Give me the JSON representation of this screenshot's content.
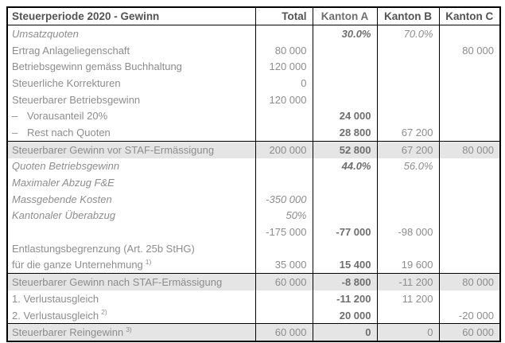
{
  "colors": {
    "border": "#000000",
    "text": "#8d8d8d",
    "bold_text": "#6e6e6e",
    "header_text": "#535353",
    "highlight_bg": "#e5e5e5"
  },
  "table": {
    "title": "Steuerperiode 2020 - Gewinn",
    "columns": [
      "Total",
      "Kanton A",
      "Kanton B",
      "Kanton C"
    ],
    "rows": [
      {
        "label": "Umsatzquoten",
        "prefix": "",
        "sup": "",
        "italic": true,
        "highlight": false,
        "total": "",
        "a": "30.0%",
        "b": "70.0%",
        "c": ""
      },
      {
        "label": "Ertrag Anlageliegenschaft",
        "prefix": "",
        "sup": "",
        "italic": false,
        "highlight": false,
        "total": "80 000",
        "a": "",
        "b": "",
        "c": "80 000"
      },
      {
        "label": "Betriebsgewinn gemäss Buchhaltung",
        "prefix": "",
        "sup": "",
        "italic": false,
        "highlight": false,
        "total": "120 000",
        "a": "",
        "b": "",
        "c": ""
      },
      {
        "label": "Steuerliche Korrekturen",
        "prefix": "",
        "sup": "",
        "italic": false,
        "highlight": false,
        "total": "0",
        "a": "",
        "b": "",
        "c": ""
      },
      {
        "label": "Steuerbarer Betriebsgewinn",
        "prefix": "",
        "sup": "",
        "italic": false,
        "highlight": false,
        "total": "120 000",
        "a": "",
        "b": "",
        "c": ""
      },
      {
        "label": "Vorausanteil 20%",
        "prefix": "–",
        "sup": "",
        "italic": false,
        "highlight": false,
        "total": "",
        "a": "24 000",
        "b": "",
        "c": ""
      },
      {
        "label": "Rest nach Quoten",
        "prefix": "–",
        "sup": "",
        "italic": false,
        "highlight": false,
        "total": "",
        "a": "28 800",
        "b": "67 200",
        "c": ""
      },
      {
        "label": "Steuerbarer Gewinn vor STAF-Ermässigung",
        "prefix": "",
        "sup": "",
        "italic": false,
        "highlight": true,
        "total": "200 000",
        "a": "52 800",
        "b": "67 200",
        "c": "80 000"
      },
      {
        "label": "Quoten Betriebsgewinn",
        "prefix": "",
        "sup": "",
        "italic": true,
        "highlight": false,
        "total": "",
        "a": "44.0%",
        "b": "56.0%",
        "c": ""
      },
      {
        "label": "Maximaler Abzug F&E",
        "prefix": "",
        "sup": "",
        "italic": true,
        "highlight": false,
        "total": "",
        "a": "",
        "b": "",
        "c": ""
      },
      {
        "label": "Massgebende Kosten",
        "prefix": "",
        "sup": "",
        "italic": true,
        "highlight": false,
        "total": "-350 000",
        "a": "",
        "b": "",
        "c": ""
      },
      {
        "label": "Kantonaler Überabzug",
        "prefix": "",
        "sup": "",
        "italic": true,
        "highlight": false,
        "total": "50%",
        "a": "",
        "b": "",
        "c": ""
      },
      {
        "label": "",
        "prefix": "",
        "sup": "",
        "italic": false,
        "highlight": false,
        "total": "-175 000",
        "a": "-77 000",
        "b": "-98 000",
        "c": ""
      },
      {
        "label": "Entlastungsbegrenzung (Art. 25b StHG)",
        "prefix": "",
        "sup": "",
        "italic": false,
        "highlight": false,
        "total": "",
        "a": "",
        "b": "",
        "c": ""
      },
      {
        "label": "für die ganze Unternehmung",
        "prefix": "",
        "sup": "1)",
        "italic": false,
        "highlight": false,
        "total": "35 000",
        "a": "15 400",
        "b": "19 600",
        "c": ""
      },
      {
        "label": "Steuerbarer Gewinn nach STAF-Ermässigung",
        "prefix": "",
        "sup": "",
        "italic": false,
        "highlight": true,
        "total": "60 000",
        "a": "-8 800",
        "b": "-11 200",
        "c": "80 000"
      },
      {
        "label": "1. Verlustausgleich",
        "prefix": "",
        "sup": "",
        "italic": false,
        "highlight": false,
        "total": "",
        "a": "-11 200",
        "b": "11 200",
        "c": ""
      },
      {
        "label": "2. Verlustausgleich",
        "prefix": "",
        "sup": "2)",
        "italic": false,
        "highlight": false,
        "total": "",
        "a": "20 000",
        "b": "",
        "c": "-20 000"
      },
      {
        "label": "Steuerbarer Reingewinn",
        "prefix": "",
        "sup": "3)",
        "italic": false,
        "highlight": true,
        "total": "60 000",
        "a": "0",
        "b": "0",
        "c": "60 000"
      }
    ]
  }
}
